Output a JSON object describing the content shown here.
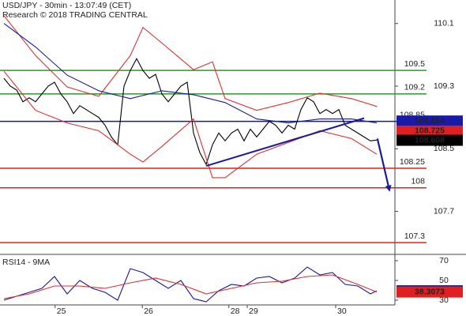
{
  "chart_data": [
    {
      "type": "line",
      "title": "USD/JPY - 30min - 13:07:49 (CET)",
      "subtitle": "Research © 2018 TRADING CENTRAL",
      "xlim": [
        -0.625,
        61.875
      ],
      "ylim": [
        107.15,
        110.4
      ],
      "yticks": [
        110.1,
        109.3,
        108.5,
        107.7
      ],
      "series": [
        {
          "color": "#000000",
          "x": [
            0,
            1,
            2,
            3,
            4,
            5,
            6,
            7,
            8,
            9,
            10,
            11,
            12,
            13,
            14,
            15,
            16,
            17,
            18,
            19,
            20,
            21,
            22,
            23,
            24,
            25,
            26,
            27,
            28,
            29,
            30,
            31,
            32,
            33,
            34,
            35,
            36,
            37,
            38,
            39,
            40,
            41,
            42,
            43,
            44,
            45,
            46,
            47,
            48,
            49,
            50,
            51,
            52,
            53,
            54,
            55,
            56,
            57,
            58,
            59
          ],
          "values": [
            109.4,
            109.3,
            109.25,
            109.1,
            109.15,
            109.1,
            109.2,
            109.3,
            109.35,
            109.2,
            109.1,
            108.95,
            109.05,
            109.0,
            108.95,
            108.9,
            108.8,
            108.65,
            108.55,
            109.3,
            109.5,
            109.65,
            109.5,
            109.4,
            109.45,
            109.2,
            109.1,
            109.2,
            109.3,
            109.35,
            108.7,
            108.45,
            108.3,
            108.55,
            108.7,
            108.6,
            108.7,
            108.75,
            108.6,
            108.75,
            108.65,
            108.75,
            108.85,
            108.8,
            108.7,
            108.8,
            108.75,
            109.0,
            109.15,
            109.1,
            108.95,
            109.0,
            108.95,
            109.0,
            108.8,
            108.75,
            108.7,
            108.65,
            108.6,
            108.61
          ]
        },
        {
          "color": "#e03030",
          "x": [
            0,
            5,
            10,
            15,
            20,
            22,
            25,
            30,
            33,
            35,
            40,
            45,
            50,
            55,
            59
          ],
          "values": [
            110.2,
            109.69,
            109.29,
            109.17,
            109.69,
            110.05,
            109.85,
            109.51,
            109.61,
            109.14,
            108.99,
            109.09,
            109.21,
            109.14,
            109.04
          ]
        },
        {
          "color": "#e03030",
          "x": [
            0,
            5,
            10,
            15,
            20,
            22,
            25,
            30,
            33,
            35,
            40,
            45,
            50,
            55,
            59
          ],
          "values": [
            109.49,
            108.99,
            108.83,
            108.73,
            108.43,
            108.33,
            108.53,
            108.88,
            108.13,
            108.13,
            108.43,
            108.58,
            108.73,
            108.63,
            108.43
          ]
        },
        {
          "color": "#1a1a9a",
          "x": [
            0,
            5,
            10,
            15,
            20,
            25,
            30,
            35,
            40,
            45,
            50,
            55,
            59
          ],
          "values": [
            110.1,
            109.8,
            109.44,
            109.24,
            109.14,
            109.24,
            109.19,
            109.09,
            108.88,
            108.83,
            108.88,
            108.88,
            108.83
          ]
        }
      ],
      "levels": [
        {
          "value": 109.5,
          "color": "#2e962e"
        },
        {
          "value": 109.2,
          "color": "#2e962e"
        },
        {
          "value": 108.85,
          "color": "#1a1a9a"
        },
        {
          "value": 108.25,
          "color": "#e02020"
        },
        {
          "value": 108,
          "color": "#e02020"
        },
        {
          "value": 107.3,
          "color": "#e02020"
        }
      ],
      "trendline": {
        "color": "#1a1a9a",
        "x": [
          32,
          57
        ],
        "values": [
          108.28,
          108.89
        ]
      },
      "arrow": {
        "color": "#1a1a9a",
        "x": [
          59.1,
          61
        ],
        "values": [
          108.63,
          107.97
        ]
      },
      "tags": [
        {
          "value": 108.854,
          "color": "#1a1aa8"
        },
        {
          "value": 108.725,
          "color": "#e02020"
        },
        {
          "value": 108.608,
          "color": "#000000"
        }
      ]
    },
    {
      "type": "line",
      "title": "RSI14 - 9MA",
      "xlim": [
        -0.625,
        61.875
      ],
      "xticks": [
        {
          "value": 8.1,
          "label": "25"
        },
        {
          "value": 21.9,
          "label": "26"
        },
        {
          "value": 35.6,
          "label": "28"
        },
        {
          "value": 38.5,
          "label": "29"
        },
        {
          "value": 52.5,
          "label": "30"
        }
      ],
      "ylim": [
        26,
        74
      ],
      "yticks": [
        70,
        50,
        30
      ],
      "series": [
        {
          "color": "#1a1a9a",
          "x": [
            0,
            2,
            4,
            6,
            8,
            10,
            12,
            14,
            16,
            18,
            20,
            22,
            24,
            26,
            28,
            30,
            32,
            34,
            36,
            38,
            40,
            42,
            44,
            46,
            48,
            50,
            52,
            54,
            56,
            58,
            59
          ],
          "values": [
            30,
            34,
            38,
            42,
            54,
            36.4,
            50,
            42,
            38,
            30,
            62,
            58,
            50,
            42,
            50,
            31.6,
            28.4,
            39.6,
            46,
            44.4,
            52.4,
            54,
            47.6,
            52.4,
            63.6,
            55.6,
            58,
            46,
            44.4,
            36.4,
            39.56
          ]
        },
        {
          "color": "#e03030",
          "x": [
            0,
            4,
            8,
            12,
            16,
            20,
            24,
            28,
            32,
            36,
            40,
            44,
            48,
            52,
            56,
            59
          ],
          "values": [
            31.6,
            36.4,
            44.4,
            44.4,
            42,
            47.6,
            52.4,
            46,
            36.4,
            42,
            47.6,
            49.2,
            54,
            55.6,
            46,
            38.3
          ]
        }
      ],
      "tags": [
        {
          "value": 39.5622,
          "color": "#1a1aa8"
        },
        {
          "value": 38.3073,
          "color": "#e02020"
        }
      ]
    }
  ]
}
